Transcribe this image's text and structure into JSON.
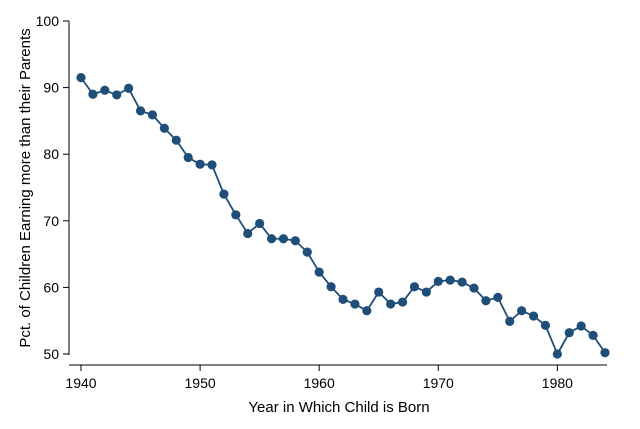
{
  "chart_data": {
    "type": "line",
    "title": "",
    "xlabel": "Year in Which Child is Born",
    "ylabel": "Pct. of Children Earning more than their Parents",
    "xlim": [
      1940,
      1984
    ],
    "ylim": [
      50,
      100
    ],
    "xticks": [
      1940,
      1950,
      1960,
      1970,
      1980
    ],
    "yticks": [
      50,
      60,
      70,
      80,
      90,
      100
    ],
    "grid": false,
    "series_color": "#1f4e79",
    "series": [
      {
        "x": [
          1940,
          1941,
          1942,
          1943,
          1944,
          1945,
          1946,
          1947,
          1948,
          1949,
          1950,
          1951,
          1952,
          1953,
          1954,
          1955,
          1956,
          1957,
          1958,
          1959,
          1960,
          1961,
          1962,
          1963,
          1964,
          1965,
          1966,
          1967,
          1968,
          1969,
          1970,
          1971,
          1972,
          1973,
          1974,
          1975,
          1976,
          1977,
          1978,
          1979,
          1980,
          1981,
          1982,
          1983,
          1984
        ],
        "y": [
          91.5,
          89.0,
          89.6,
          88.9,
          89.9,
          86.5,
          85.9,
          83.9,
          82.1,
          79.5,
          78.5,
          78.4,
          74.0,
          70.9,
          68.1,
          69.6,
          67.3,
          67.3,
          67.0,
          65.3,
          62.3,
          60.1,
          58.2,
          57.5,
          56.5,
          59.3,
          57.5,
          57.8,
          60.1,
          59.3,
          60.9,
          61.1,
          60.8,
          59.9,
          58.0,
          58.5,
          54.9,
          56.5,
          55.7,
          54.3,
          50.0,
          53.2,
          54.2,
          52.8,
          50.2
        ]
      }
    ]
  }
}
